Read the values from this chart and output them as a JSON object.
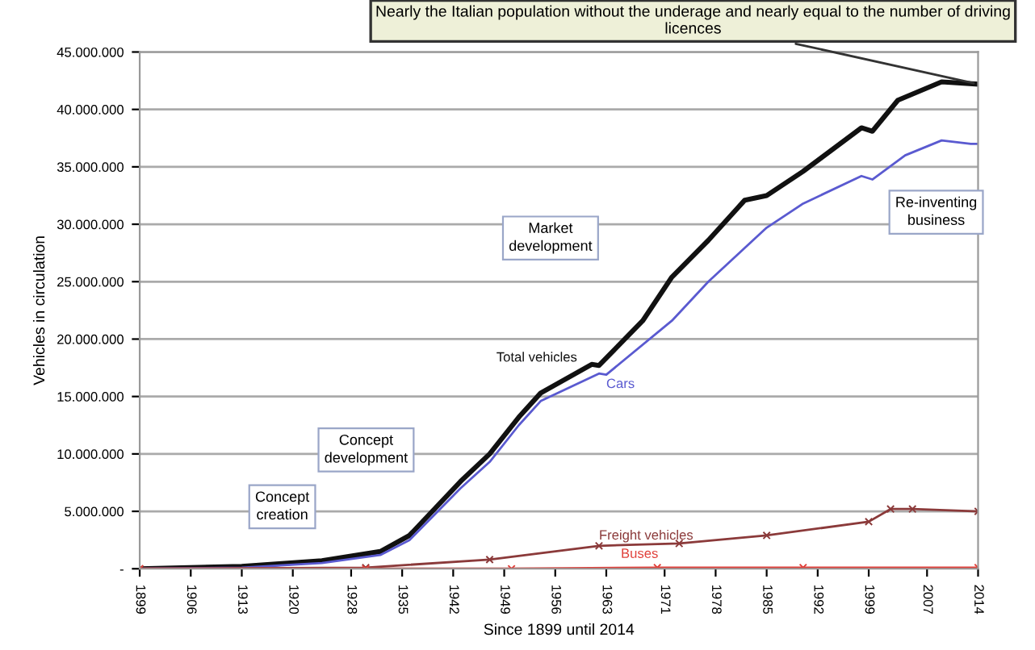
{
  "chart_data": {
    "type": "line",
    "xlabel": "Since 1899 until 2014",
    "ylabel": "Vehicles in circulation",
    "xlim": [
      1899,
      2014
    ],
    "xticks": [
      1899,
      1906,
      1913,
      1920,
      1928,
      1935,
      1942,
      1949,
      1956,
      1963,
      1971,
      1978,
      1985,
      1992,
      1999,
      2007,
      2014
    ],
    "ylim": [
      0,
      45000000
    ],
    "yticks": [
      {
        "value": 0,
        "label": "-"
      },
      {
        "value": 5000000,
        "label": "5.000.000"
      },
      {
        "value": 10000000,
        "label": "10.000.000"
      },
      {
        "value": 15000000,
        "label": "15.000.000"
      },
      {
        "value": 20000000,
        "label": "20.000.000"
      },
      {
        "value": 25000000,
        "label": "25.000.000"
      },
      {
        "value": 30000000,
        "label": "30.000.000"
      },
      {
        "value": 35000000,
        "label": "35.000.000"
      },
      {
        "value": 40000000,
        "label": "40.000.000"
      },
      {
        "value": 45000000,
        "label": "45.000.000"
      }
    ],
    "grid": "y",
    "series": [
      {
        "name": "Total vehicles",
        "color": "#111111",
        "x": [
          1899,
          1913,
          1924,
          1932,
          1936,
          1943,
          1947,
          1951,
          1954,
          1961,
          1962,
          1968,
          1972,
          1977,
          1982,
          1985,
          1990,
          1998,
          1999.5,
          2003,
          2009,
          2014
        ],
        "values": [
          0,
          200000,
          700000,
          1500000,
          2900000,
          7600000,
          10000000,
          13200000,
          15300000,
          17800000,
          17700000,
          21600000,
          25400000,
          28600000,
          32100000,
          32500000,
          34600000,
          38400000,
          38100000,
          40800000,
          42400000,
          42200000
        ]
      },
      {
        "name": "Cars",
        "color": "#5a5ad0",
        "x": [
          1899,
          1913,
          1924,
          1932,
          1936,
          1943,
          1947,
          1951,
          1954,
          1962,
          1963,
          1972,
          1977,
          1985,
          1990,
          1998,
          1999.5,
          2004,
          2009,
          2013,
          2014
        ],
        "values": [
          0,
          100000,
          500000,
          1200000,
          2500000,
          7000000,
          9300000,
          12500000,
          14600000,
          17000000,
          16900000,
          21600000,
          25000000,
          29700000,
          31800000,
          34200000,
          33900000,
          36000000,
          37300000,
          37000000,
          37000000
        ]
      },
      {
        "name": "Freight vehicles",
        "color": "#8b3a3a",
        "marker": "cross",
        "x": [
          1899,
          1930,
          1947,
          1962,
          1973,
          1985,
          1999,
          2002,
          2005,
          2014
        ],
        "values": [
          0,
          100000,
          800000,
          2000000,
          2200000,
          2900000,
          4100000,
          5200000,
          5200000,
          5000000
        ]
      },
      {
        "name": "Buses",
        "color": "#e0403a",
        "marker": "cross",
        "x": [
          1899,
          1930,
          1950,
          1970,
          1990,
          2014
        ],
        "values": [
          0,
          0,
          0,
          100000,
          100000,
          100000
        ]
      }
    ],
    "annotations": [
      "Concept creation",
      "Concept development",
      "Market development",
      "Re-inventing business",
      {
        "text": "Nearly the Italian population without the underage and nearly equal to the number of driving licences",
        "x": 2014,
        "y": 42200000
      }
    ]
  }
}
